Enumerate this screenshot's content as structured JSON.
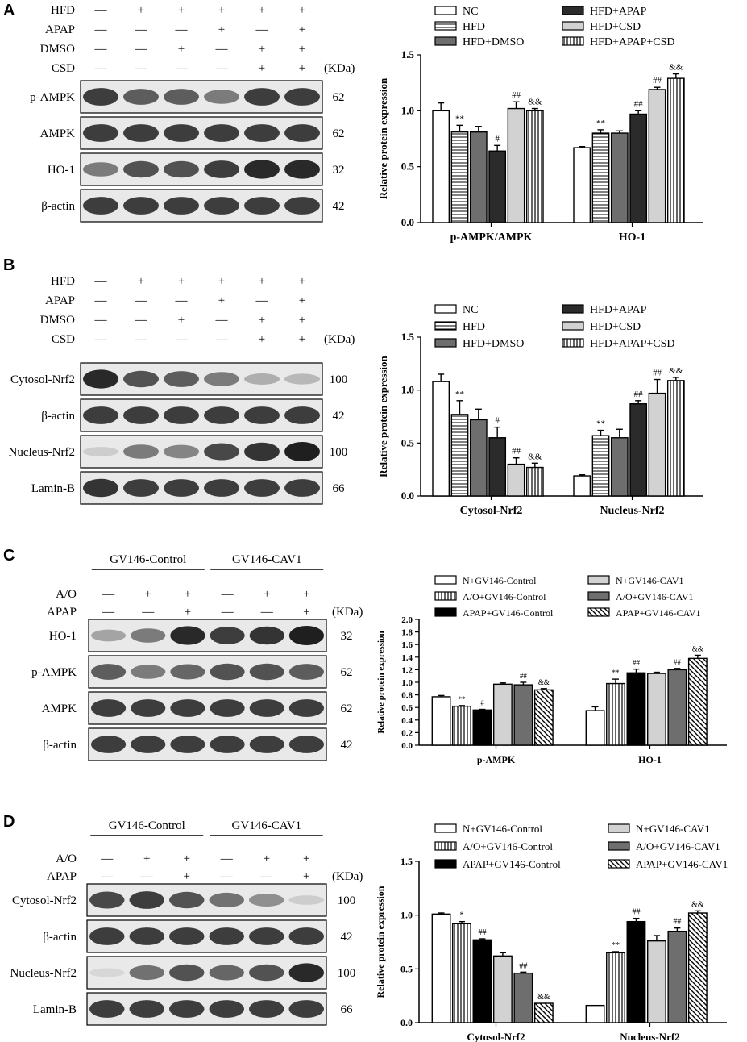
{
  "figure": {
    "panels": [
      {
        "letter": "A",
        "blot": {
          "treatments": [
            {
              "name": "HFD",
              "marks": [
                "—",
                "+",
                "+",
                "+",
                "+",
                "+"
              ]
            },
            {
              "name": "APAP",
              "marks": [
                "—",
                "—",
                "—",
                "+",
                "—",
                "+"
              ]
            },
            {
              "name": "DMSO",
              "marks": [
                "—",
                "—",
                "+",
                "—",
                "+",
                "+"
              ]
            },
            {
              "name": "CSD",
              "marks": [
                "—",
                "—",
                "—",
                "—",
                "+",
                "+"
              ]
            }
          ],
          "kda_header": "(KDa)",
          "bands": [
            {
              "label": "p-AMPK",
              "kda": "62",
              "intensity": [
                0.85,
                0.7,
                0.7,
                0.55,
                0.85,
                0.85
              ]
            },
            {
              "label": "AMPK",
              "kda": "62",
              "intensity": [
                0.85,
                0.85,
                0.85,
                0.85,
                0.85,
                0.85
              ]
            },
            {
              "label": "HO-1",
              "kda": "32",
              "intensity": [
                0.55,
                0.75,
                0.75,
                0.85,
                0.95,
                0.95
              ]
            },
            {
              "label": "β-actin",
              "kda": "42",
              "intensity": [
                0.85,
                0.85,
                0.85,
                0.85,
                0.85,
                0.85
              ]
            }
          ]
        }
      },
      {
        "letter": "B",
        "blot": {
          "treatments": [
            {
              "name": "HFD",
              "marks": [
                "—",
                "+",
                "+",
                "+",
                "+",
                "+"
              ]
            },
            {
              "name": "APAP",
              "marks": [
                "—",
                "—",
                "—",
                "+",
                "—",
                "+"
              ]
            },
            {
              "name": "DMSO",
              "marks": [
                "—",
                "—",
                "+",
                "—",
                "+",
                "+"
              ]
            },
            {
              "name": "CSD",
              "marks": [
                "—",
                "—",
                "—",
                "—",
                "+",
                "+"
              ]
            }
          ],
          "kda_header": "(KDa)",
          "bands": [
            {
              "label": "Cytosol-Nrf2",
              "kda": "100",
              "intensity": [
                0.95,
                0.75,
                0.7,
                0.55,
                0.3,
                0.25
              ]
            },
            {
              "label": "β-actin",
              "kda": "42",
              "intensity": [
                0.85,
                0.85,
                0.85,
                0.85,
                0.85,
                0.85
              ]
            },
            {
              "label": "Nucleus-Nrf2",
              "kda": "100",
              "intensity": [
                0.15,
                0.55,
                0.5,
                0.8,
                0.9,
                1.0
              ]
            },
            {
              "label": "Lamin-B",
              "kda": "66",
              "intensity": [
                0.9,
                0.85,
                0.85,
                0.85,
                0.85,
                0.85
              ]
            }
          ]
        }
      },
      {
        "letter": "C",
        "blot": {
          "groups": [
            "GV146-Control",
            "GV146-CAV1"
          ],
          "treatments": [
            {
              "name": "A/O",
              "marks": [
                "—",
                "+",
                "+",
                "—",
                "+",
                "+"
              ]
            },
            {
              "name": "APAP",
              "marks": [
                "—",
                "—",
                "+",
                "—",
                "—",
                "+"
              ]
            }
          ],
          "kda_header": "(KDa)",
          "bands": [
            {
              "label": "HO-1",
              "kda": "32",
              "intensity": [
                0.35,
                0.55,
                0.95,
                0.85,
                0.9,
                1.0
              ]
            },
            {
              "label": "p-AMPK",
              "kda": "62",
              "intensity": [
                0.7,
                0.55,
                0.65,
                0.75,
                0.75,
                0.7
              ]
            },
            {
              "label": "AMPK",
              "kda": "62",
              "intensity": [
                0.85,
                0.85,
                0.85,
                0.85,
                0.85,
                0.85
              ]
            },
            {
              "label": "β-actin",
              "kda": "42",
              "intensity": [
                0.85,
                0.85,
                0.85,
                0.85,
                0.85,
                0.85
              ]
            }
          ]
        }
      },
      {
        "letter": "D",
        "blot": {
          "groups": [
            "GV146-Control",
            "GV146-CAV1"
          ],
          "treatments": [
            {
              "name": "A/O",
              "marks": [
                "—",
                "+",
                "+",
                "—",
                "+",
                "+"
              ]
            },
            {
              "name": "APAP",
              "marks": [
                "—",
                "—",
                "+",
                "—",
                "—",
                "+"
              ]
            }
          ],
          "kda_header": "(KDa)",
          "bands": [
            {
              "label": "Cytosol-Nrf2",
              "kda": "100",
              "intensity": [
                0.8,
                0.85,
                0.75,
                0.6,
                0.45,
                0.15
              ]
            },
            {
              "label": "β-actin",
              "kda": "42",
              "intensity": [
                0.85,
                0.85,
                0.85,
                0.85,
                0.85,
                0.85
              ]
            },
            {
              "label": "Nucleus-Nrf2",
              "kda": "100",
              "intensity": [
                0.1,
                0.6,
                0.75,
                0.65,
                0.75,
                0.95
              ]
            },
            {
              "label": "Lamin-B",
              "kda": "66",
              "intensity": [
                0.85,
                0.85,
                0.85,
                0.85,
                0.85,
                0.85
              ]
            }
          ]
        }
      }
    ]
  },
  "chart_data": [
    {
      "panel": "A",
      "type": "bar",
      "ylabel": "Relative protein expression",
      "ylim": [
        0,
        1.5
      ],
      "yticks": [
        "0.0",
        "0.5",
        "1.0",
        "1.5"
      ],
      "categories": [
        "p-AMPK/AMPK",
        "HO-1"
      ],
      "legend_columns": 2,
      "series": [
        {
          "name": "NC",
          "pattern": "white",
          "values": [
            1.0,
            0.67
          ],
          "errors": [
            0.07,
            0.01
          ],
          "marks": [
            "",
            ""
          ]
        },
        {
          "name": "HFD",
          "pattern": "hlines",
          "values": [
            0.81,
            0.8
          ],
          "errors": [
            0.06,
            0.03
          ],
          "marks": [
            "**",
            "**"
          ]
        },
        {
          "name": "HFD+DMSO",
          "pattern": "dark-gray",
          "values": [
            0.81,
            0.8
          ],
          "errors": [
            0.05,
            0.02
          ],
          "marks": [
            "",
            ""
          ]
        },
        {
          "name": "HFD+APAP",
          "pattern": "near-black",
          "values": [
            0.64,
            0.97
          ],
          "errors": [
            0.05,
            0.03
          ],
          "marks": [
            "#",
            "##"
          ]
        },
        {
          "name": "HFD+CSD",
          "pattern": "light-gray",
          "values": [
            1.02,
            1.19
          ],
          "errors": [
            0.06,
            0.02
          ],
          "marks": [
            "##",
            "##"
          ]
        },
        {
          "name": "HFD+APAP+CSD",
          "pattern": "vlines",
          "values": [
            1.0,
            1.29
          ],
          "errors": [
            0.02,
            0.04
          ],
          "marks": [
            "&&",
            "&&"
          ]
        }
      ]
    },
    {
      "panel": "B",
      "type": "bar",
      "ylabel": "Relative protein expression",
      "ylim": [
        0,
        1.5
      ],
      "yticks": [
        "0.0",
        "0.5",
        "1.0",
        "1.5"
      ],
      "categories": [
        "Cytosol-Nrf2",
        "Nucleus-Nrf2"
      ],
      "legend_columns": 2,
      "series": [
        {
          "name": "NC",
          "pattern": "white",
          "values": [
            1.08,
            0.19
          ],
          "errors": [
            0.07,
            0.01
          ],
          "marks": [
            "",
            ""
          ]
        },
        {
          "name": "HFD",
          "pattern": "hlines",
          "values": [
            0.77,
            0.57
          ],
          "errors": [
            0.13,
            0.05
          ],
          "marks": [
            "**",
            "**"
          ]
        },
        {
          "name": "HFD+DMSO",
          "pattern": "dark-gray",
          "values": [
            0.72,
            0.55
          ],
          "errors": [
            0.1,
            0.08
          ],
          "marks": [
            "",
            ""
          ]
        },
        {
          "name": "HFD+APAP",
          "pattern": "near-black",
          "values": [
            0.55,
            0.87
          ],
          "errors": [
            0.1,
            0.03
          ],
          "marks": [
            "#",
            "##"
          ]
        },
        {
          "name": "HFD+CSD",
          "pattern": "light-gray",
          "values": [
            0.3,
            0.97
          ],
          "errors": [
            0.06,
            0.13
          ],
          "marks": [
            "##",
            "##"
          ]
        },
        {
          "name": "HFD+APAP+CSD",
          "pattern": "vlines",
          "values": [
            0.27,
            1.09
          ],
          "errors": [
            0.04,
            0.03
          ],
          "marks": [
            "&&",
            "&&"
          ]
        }
      ]
    },
    {
      "panel": "C",
      "type": "bar",
      "ylabel": "Relative protein expression",
      "ylim": [
        0,
        2.0
      ],
      "yticks": [
        "0.0",
        "0.2",
        "0.4",
        "0.6",
        "0.8",
        "1.0",
        "1.2",
        "1.4",
        "1.6",
        "1.8",
        "2.0"
      ],
      "categories": [
        "p-AMPK",
        "HO-1"
      ],
      "legend_columns": 2,
      "series": [
        {
          "name": "N+GV146-Control",
          "pattern": "white",
          "values": [
            0.77,
            0.55
          ],
          "errors": [
            0.02,
            0.06
          ],
          "marks": [
            "",
            ""
          ]
        },
        {
          "name": "A/O+GV146-Control",
          "pattern": "vlines",
          "values": [
            0.62,
            0.98
          ],
          "errors": [
            0.01,
            0.07
          ],
          "marks": [
            "**",
            "**"
          ]
        },
        {
          "name": "APAP+GV146-Control",
          "pattern": "black",
          "values": [
            0.56,
            1.15
          ],
          "errors": [
            0.01,
            0.06
          ],
          "marks": [
            "#",
            "##"
          ]
        },
        {
          "name": "N+GV146-CAV1",
          "pattern": "light-gray",
          "values": [
            0.97,
            1.14
          ],
          "errors": [
            0.02,
            0.02
          ],
          "marks": [
            "",
            ""
          ]
        },
        {
          "name": "A/O+GV146-CAV1",
          "pattern": "dark-gray",
          "values": [
            0.96,
            1.2
          ],
          "errors": [
            0.04,
            0.02
          ],
          "marks": [
            "##",
            "##"
          ]
        },
        {
          "name": "APAP+GV146-CAV1",
          "pattern": "diagonal",
          "values": [
            0.88,
            1.38
          ],
          "errors": [
            0.02,
            0.05
          ],
          "marks": [
            "&&",
            "&&"
          ]
        }
      ]
    },
    {
      "panel": "D",
      "type": "bar",
      "ylabel": "Relative protein expression",
      "ylim": [
        0,
        1.5
      ],
      "yticks": [
        "0.0",
        "0.5",
        "1.0",
        "1.5"
      ],
      "categories": [
        "Cytosol-Nrf2",
        "Nucleus-Nrf2"
      ],
      "legend_columns": 2,
      "series": [
        {
          "name": "N+GV146-Control",
          "pattern": "white",
          "values": [
            1.01,
            0.16
          ],
          "errors": [
            0.01,
            0.0
          ],
          "marks": [
            "",
            ""
          ]
        },
        {
          "name": "A/O+GV146-Control",
          "pattern": "vlines",
          "values": [
            0.92,
            0.65
          ],
          "errors": [
            0.02,
            0.01
          ],
          "marks": [
            "*",
            "**"
          ]
        },
        {
          "name": "APAP+GV146-Control",
          "pattern": "black",
          "values": [
            0.77,
            0.94
          ],
          "errors": [
            0.01,
            0.03
          ],
          "marks": [
            "##",
            "##"
          ]
        },
        {
          "name": "N+GV146-CAV1",
          "pattern": "light-gray",
          "values": [
            0.62,
            0.76
          ],
          "errors": [
            0.03,
            0.05
          ],
          "marks": [
            "",
            ""
          ]
        },
        {
          "name": "A/O+GV146-CAV1",
          "pattern": "dark-gray",
          "values": [
            0.46,
            0.85
          ],
          "errors": [
            0.01,
            0.03
          ],
          "marks": [
            "##",
            "##"
          ]
        },
        {
          "name": "APAP+GV146-CAV1",
          "pattern": "diagonal",
          "values": [
            0.18,
            1.02
          ],
          "errors": [
            0.0,
            0.02
          ],
          "marks": [
            "&&",
            "&&"
          ]
        }
      ]
    }
  ]
}
